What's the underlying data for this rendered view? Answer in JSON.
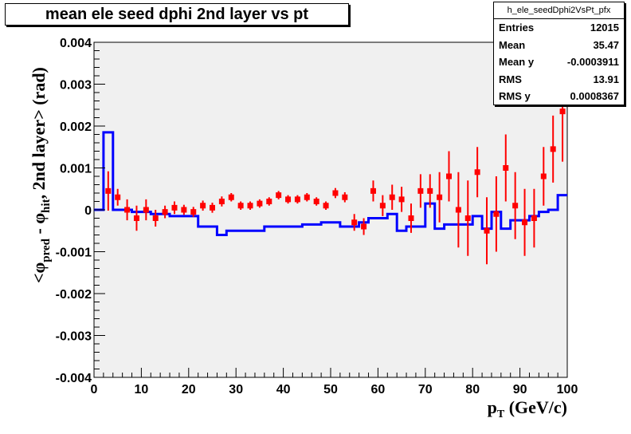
{
  "title": "mean ele seed dphi 2nd layer vs pt",
  "stats": {
    "name": "h_ele_seedDphi2VsPt_pfx",
    "rows": [
      {
        "label": "Entries",
        "value": "12015"
      },
      {
        "label": "Mean",
        "value": "35.47"
      },
      {
        "label": "Mean y",
        "value": "-0.0003911"
      },
      {
        "label": "RMS",
        "value": "13.91"
      },
      {
        "label": "RMS y",
        "value": "0.0008367"
      }
    ]
  },
  "colors": {
    "frame_bg": "#f0f0f0",
    "histogram": "#0000ff",
    "markers": "#ff0000"
  },
  "chart_data": {
    "type": "scatter",
    "title": "mean ele seed dphi 2nd layer vs pt",
    "xlabel_parts": {
      "p": "p",
      "T": "T",
      "unit": " (GeV/c)"
    },
    "ylabel_parts": {
      "open": "<φ",
      "seed": "pred",
      "minus": " - φ",
      "hit": "hit",
      "rest": ", 2nd layer> (rad)"
    },
    "xlim": [
      0,
      100
    ],
    "ylim": [
      -0.004,
      0.004
    ],
    "x_ticks": [
      0,
      10,
      20,
      30,
      40,
      50,
      60,
      70,
      80,
      90,
      100
    ],
    "y_ticks": [
      "-0.004",
      "-0.003",
      "-0.002",
      "-0.001",
      "0",
      "0.001",
      "0.002",
      "0.003",
      "0.004"
    ],
    "grid": false,
    "series": [
      {
        "kind": "step-histogram",
        "bins": [
          [
            0,
            2,
            0.0
          ],
          [
            2,
            4,
            0.00185
          ],
          [
            4,
            6,
            0.0
          ],
          [
            6,
            8,
            0.0
          ],
          [
            8,
            10,
            -5e-05
          ],
          [
            10,
            12,
            -5e-05
          ],
          [
            12,
            14,
            -0.0001
          ],
          [
            14,
            16,
            -0.0001
          ],
          [
            16,
            18,
            -0.00015
          ],
          [
            18,
            20,
            -0.00015
          ],
          [
            20,
            22,
            -0.00015
          ],
          [
            22,
            24,
            -0.0004
          ],
          [
            24,
            26,
            -0.0004
          ],
          [
            26,
            28,
            -0.0006
          ],
          [
            28,
            30,
            -0.0005
          ],
          [
            30,
            32,
            -0.0005
          ],
          [
            32,
            34,
            -0.0005
          ],
          [
            34,
            36,
            -0.0005
          ],
          [
            36,
            38,
            -0.0004
          ],
          [
            38,
            40,
            -0.0004
          ],
          [
            40,
            42,
            -0.0004
          ],
          [
            42,
            44,
            -0.0004
          ],
          [
            44,
            46,
            -0.00035
          ],
          [
            46,
            48,
            -0.00035
          ],
          [
            48,
            50,
            -0.0003
          ],
          [
            50,
            52,
            -0.0003
          ],
          [
            52,
            54,
            -0.0004
          ],
          [
            54,
            56,
            -0.0004
          ],
          [
            56,
            58,
            -0.0003
          ],
          [
            58,
            60,
            -0.0002
          ],
          [
            60,
            62,
            -0.0002
          ],
          [
            62,
            64,
            -0.0001
          ],
          [
            64,
            66,
            -0.0005
          ],
          [
            66,
            68,
            -0.0004
          ],
          [
            68,
            70,
            -0.0004
          ],
          [
            70,
            72,
            0.00015
          ],
          [
            72,
            74,
            -0.00045
          ],
          [
            74,
            76,
            -0.00035
          ],
          [
            76,
            78,
            -0.00035
          ],
          [
            78,
            80,
            -0.00035
          ],
          [
            80,
            82,
            -0.00015
          ],
          [
            82,
            84,
            -0.00045
          ],
          [
            84,
            86,
            -5e-05
          ],
          [
            86,
            88,
            -0.00045
          ],
          [
            88,
            90,
            -0.00025
          ],
          [
            90,
            92,
            -0.00025
          ],
          [
            92,
            94,
            -0.00015
          ],
          [
            94,
            96,
            -5e-05
          ],
          [
            96,
            98,
            0.0
          ],
          [
            98,
            100,
            0.00035
          ]
        ]
      },
      {
        "kind": "points-with-errors",
        "points": [
          [
            3,
            0.00045,
            0.00047
          ],
          [
            5,
            0.0003,
            0.0002
          ],
          [
            7,
            0.0,
            0.00025
          ],
          [
            9,
            -0.0002,
            0.0003
          ],
          [
            11,
            0.0,
            0.00025
          ],
          [
            13,
            -0.0002,
            0.0002
          ],
          [
            15,
            -5e-05,
            0.00015
          ],
          [
            17,
            5e-05,
            0.00015
          ],
          [
            19,
            0.0,
            0.00012
          ],
          [
            21,
            -5e-05,
            0.00012
          ],
          [
            23,
            0.0001,
            0.00012
          ],
          [
            25,
            5e-05,
            0.00012
          ],
          [
            27,
            0.0002,
            0.00012
          ],
          [
            29,
            0.0003,
            0.0001
          ],
          [
            31,
            0.0001,
            0.0001
          ],
          [
            33,
            0.0001,
            0.0001
          ],
          [
            35,
            0.00015,
            0.0001
          ],
          [
            37,
            0.0002,
            0.0001
          ],
          [
            39,
            0.00035,
            0.0001
          ],
          [
            41,
            0.00025,
            0.0001
          ],
          [
            43,
            0.00025,
            0.0001
          ],
          [
            45,
            0.0003,
            0.0001
          ],
          [
            47,
            0.0002,
            0.0001
          ],
          [
            49,
            0.0001,
            0.0001
          ],
          [
            51,
            0.0004,
            0.00012
          ],
          [
            53,
            0.0003,
            0.00012
          ],
          [
            55,
            -0.0003,
            0.0002
          ],
          [
            57,
            -0.0004,
            0.0002
          ],
          [
            59,
            0.00045,
            0.00025
          ],
          [
            61,
            0.0001,
            0.00025
          ],
          [
            63,
            0.0003,
            0.0003
          ],
          [
            65,
            0.00025,
            0.0003
          ],
          [
            67,
            -0.0002,
            0.00035
          ],
          [
            69,
            0.00045,
            0.0004
          ],
          [
            71,
            0.00045,
            0.0004
          ],
          [
            73,
            0.0003,
            0.0006
          ],
          [
            75,
            0.0008,
            0.0006
          ],
          [
            77,
            0.0,
            0.0009
          ],
          [
            79,
            -0.0002,
            0.0009
          ],
          [
            81,
            0.0009,
            0.0006
          ],
          [
            83,
            -0.0005,
            0.0008
          ],
          [
            85,
            -0.0001,
            0.0009
          ],
          [
            87,
            0.001,
            0.0008
          ],
          [
            89,
            0.0001,
            0.0008
          ],
          [
            91,
            -0.0003,
            0.0008
          ],
          [
            93,
            -0.0002,
            0.0007
          ],
          [
            95,
            0.0008,
            0.0007
          ],
          [
            97,
            0.00145,
            0.0008
          ],
          [
            99,
            0.00235,
            0.0012
          ]
        ]
      }
    ]
  }
}
